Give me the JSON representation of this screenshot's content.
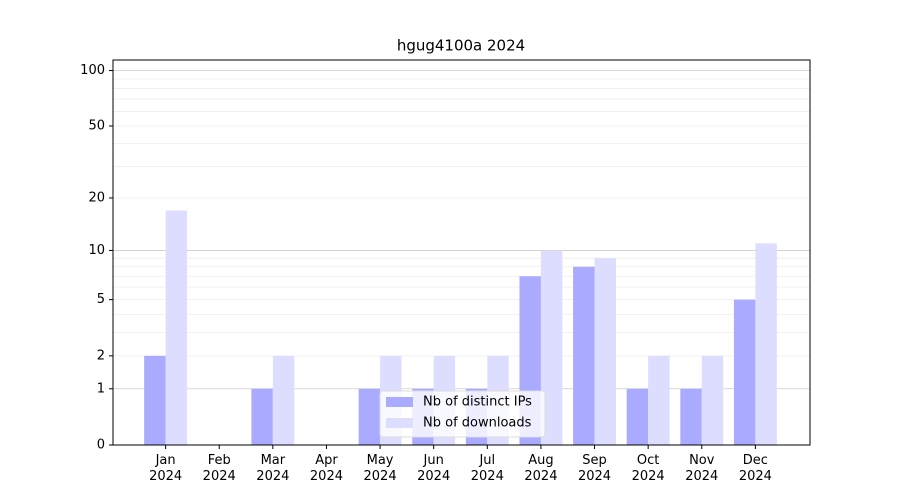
{
  "chart_data": {
    "type": "bar",
    "title": "hgug4100a 2024",
    "categories": [
      "Jan\n2024",
      "Feb\n2024",
      "Mar\n2024",
      "Apr\n2024",
      "May\n2024",
      "Jun\n2024",
      "Jul\n2024",
      "Aug\n2024",
      "Sep\n2024",
      "Oct\n2024",
      "Nov\n2024",
      "Dec\n2024"
    ],
    "series": [
      {
        "name": "Nb of distinct IPs",
        "color": "#aaaaff",
        "values": [
          2,
          0,
          1,
          0,
          1,
          1,
          1,
          7,
          8,
          1,
          1,
          5
        ]
      },
      {
        "name": "Nb of downloads",
        "color": "#ddddff",
        "values": [
          17,
          0,
          2,
          0,
          2,
          2,
          2,
          10,
          9,
          2,
          2,
          11
        ]
      }
    ],
    "yscale": "log1p",
    "ylim": [
      0,
      114
    ],
    "yticks": [
      0,
      1,
      2,
      5,
      10,
      20,
      50,
      100
    ],
    "minor_yticks": [
      3,
      4,
      6,
      7,
      8,
      9,
      30,
      40,
      60,
      70,
      80,
      90
    ],
    "grid": true,
    "legend": "lower center"
  }
}
